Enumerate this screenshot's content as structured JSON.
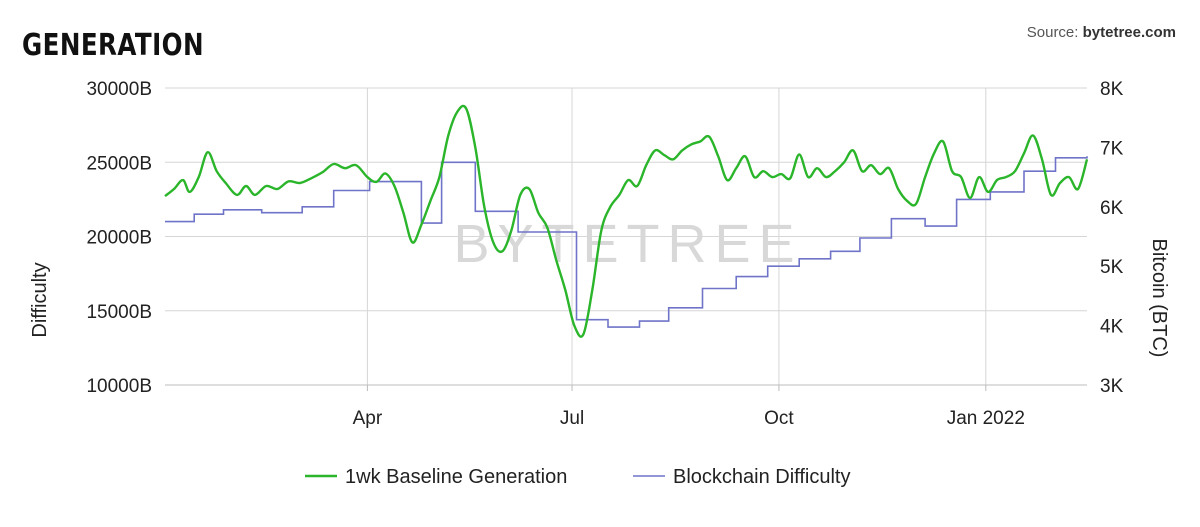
{
  "header": {
    "title": "GENERATION",
    "source_label": "Source: ",
    "source_name": "bytetree.com"
  },
  "watermark": "BYTETREE",
  "chart_data": {
    "type": "line",
    "x_ticks": [
      "Apr",
      "Jul",
      "Oct",
      "Jan 2022"
    ],
    "left_axis": {
      "label": "Difficulty",
      "ticks": [
        "10000B",
        "15000B",
        "20000B",
        "25000B",
        "30000B"
      ],
      "range": [
        10000,
        30000
      ]
    },
    "right_axis": {
      "label": "Bitcoin (BTC)",
      "ticks": [
        "3K",
        "4K",
        "5K",
        "6K",
        "7K",
        "8K"
      ],
      "range": [
        3000,
        8000
      ]
    },
    "grid": true,
    "legend_position": "bottom",
    "series": [
      {
        "name": "1wk Baseline Generation",
        "axis": "right",
        "color": "#2ab52a",
        "x_range": [
          "2021-01-01",
          "2022-02-15"
        ],
        "points": [
          [
            "2021-01-01",
            6180
          ],
          [
            "2021-01-05",
            6300
          ],
          [
            "2021-01-09",
            6450
          ],
          [
            "2021-01-12",
            6250
          ],
          [
            "2021-01-16",
            6500
          ],
          [
            "2021-01-20",
            6920
          ],
          [
            "2021-01-24",
            6600
          ],
          [
            "2021-01-28",
            6400
          ],
          [
            "2021-02-02",
            6200
          ],
          [
            "2021-02-06",
            6350
          ],
          [
            "2021-02-10",
            6200
          ],
          [
            "2021-02-15",
            6350
          ],
          [
            "2021-02-20",
            6300
          ],
          [
            "2021-02-25",
            6430
          ],
          [
            "2021-03-02",
            6400
          ],
          [
            "2021-03-07",
            6480
          ],
          [
            "2021-03-12",
            6580
          ],
          [
            "2021-03-17",
            6720
          ],
          [
            "2021-03-22",
            6650
          ],
          [
            "2021-03-27",
            6700
          ],
          [
            "2021-04-01",
            6500
          ],
          [
            "2021-04-05",
            6420
          ],
          [
            "2021-04-09",
            6560
          ],
          [
            "2021-04-13",
            6350
          ],
          [
            "2021-04-17",
            5900
          ],
          [
            "2021-04-21",
            5400
          ],
          [
            "2021-04-25",
            5700
          ],
          [
            "2021-04-29",
            6100
          ],
          [
            "2021-05-03",
            6500
          ],
          [
            "2021-05-07",
            7200
          ],
          [
            "2021-05-11",
            7600
          ],
          [
            "2021-05-15",
            7650
          ],
          [
            "2021-05-19",
            7000
          ],
          [
            "2021-05-23",
            6000
          ],
          [
            "2021-05-27",
            5400
          ],
          [
            "2021-05-31",
            5250
          ],
          [
            "2021-06-04",
            5600
          ],
          [
            "2021-06-08",
            6200
          ],
          [
            "2021-06-12",
            6300
          ],
          [
            "2021-06-16",
            5900
          ],
          [
            "2021-06-20",
            5650
          ],
          [
            "2021-06-24",
            5100
          ],
          [
            "2021-06-28",
            4600
          ],
          [
            "2021-07-02",
            4000
          ],
          [
            "2021-07-06",
            3850
          ],
          [
            "2021-07-10",
            4600
          ],
          [
            "2021-07-14",
            5600
          ],
          [
            "2021-07-18",
            6000
          ],
          [
            "2021-07-22",
            6200
          ],
          [
            "2021-07-26",
            6450
          ],
          [
            "2021-07-30",
            6350
          ],
          [
            "2021-08-03",
            6700
          ],
          [
            "2021-08-07",
            6950
          ],
          [
            "2021-08-11",
            6870
          ],
          [
            "2021-08-15",
            6800
          ],
          [
            "2021-08-19",
            6950
          ],
          [
            "2021-08-23",
            7050
          ],
          [
            "2021-08-27",
            7100
          ],
          [
            "2021-08-31",
            7180
          ],
          [
            "2021-09-04",
            6850
          ],
          [
            "2021-09-08",
            6450
          ],
          [
            "2021-09-12",
            6650
          ],
          [
            "2021-09-16",
            6850
          ],
          [
            "2021-09-20",
            6500
          ],
          [
            "2021-09-24",
            6600
          ],
          [
            "2021-09-28",
            6500
          ],
          [
            "2021-10-02",
            6550
          ],
          [
            "2021-10-06",
            6480
          ],
          [
            "2021-10-10",
            6880
          ],
          [
            "2021-10-14",
            6500
          ],
          [
            "2021-10-18",
            6650
          ],
          [
            "2021-10-22",
            6500
          ],
          [
            "2021-10-26",
            6600
          ],
          [
            "2021-10-30",
            6750
          ],
          [
            "2021-11-03",
            6950
          ],
          [
            "2021-11-07",
            6600
          ],
          [
            "2021-11-11",
            6700
          ],
          [
            "2021-11-15",
            6550
          ],
          [
            "2021-11-19",
            6650
          ],
          [
            "2021-11-23",
            6300
          ],
          [
            "2021-11-27",
            6100
          ],
          [
            "2021-12-01",
            6050
          ],
          [
            "2021-12-05",
            6500
          ],
          [
            "2021-12-09",
            6900
          ],
          [
            "2021-12-13",
            7100
          ],
          [
            "2021-12-17",
            6600
          ],
          [
            "2021-12-21",
            6500
          ],
          [
            "2021-12-25",
            6150
          ],
          [
            "2021-12-29",
            6500
          ],
          [
            "2022-01-02",
            6250
          ],
          [
            "2022-01-06",
            6450
          ],
          [
            "2022-01-10",
            6500
          ],
          [
            "2022-01-14",
            6600
          ],
          [
            "2022-01-18",
            6900
          ],
          [
            "2022-01-22",
            7200
          ],
          [
            "2022-01-26",
            6800
          ],
          [
            "2022-01-30",
            6200
          ],
          [
            "2022-02-03",
            6400
          ],
          [
            "2022-02-07",
            6500
          ],
          [
            "2022-02-11",
            6300
          ],
          [
            "2022-02-15",
            6800
          ]
        ]
      },
      {
        "name": "Blockchain Difficulty",
        "axis": "left",
        "color": "#6f74c8",
        "x_range": [
          "2021-01-01",
          "2022-02-15"
        ],
        "steps": [
          [
            "2021-01-01",
            21000
          ],
          [
            "2021-01-14",
            21500
          ],
          [
            "2021-01-27",
            21800
          ],
          [
            "2021-02-13",
            21600
          ],
          [
            "2021-03-03",
            22000
          ],
          [
            "2021-03-17",
            23100
          ],
          [
            "2021-04-02",
            23700
          ],
          [
            "2021-04-25",
            20900
          ],
          [
            "2021-05-04",
            25000
          ],
          [
            "2021-05-19",
            21700
          ],
          [
            "2021-06-07",
            20300
          ],
          [
            "2021-07-03",
            14400
          ],
          [
            "2021-07-17",
            13900
          ],
          [
            "2021-07-31",
            14300
          ],
          [
            "2021-08-13",
            15200
          ],
          [
            "2021-08-28",
            16500
          ],
          [
            "2021-09-12",
            17300
          ],
          [
            "2021-09-26",
            18000
          ],
          [
            "2021-10-10",
            18500
          ],
          [
            "2021-10-24",
            19000
          ],
          [
            "2021-11-06",
            19900
          ],
          [
            "2021-11-20",
            21200
          ],
          [
            "2021-12-05",
            20700
          ],
          [
            "2021-12-19",
            22500
          ],
          [
            "2022-01-03",
            23000
          ],
          [
            "2022-01-18",
            24400
          ],
          [
            "2022-02-01",
            25300
          ],
          [
            "2022-02-15",
            25400
          ]
        ]
      }
    ]
  }
}
